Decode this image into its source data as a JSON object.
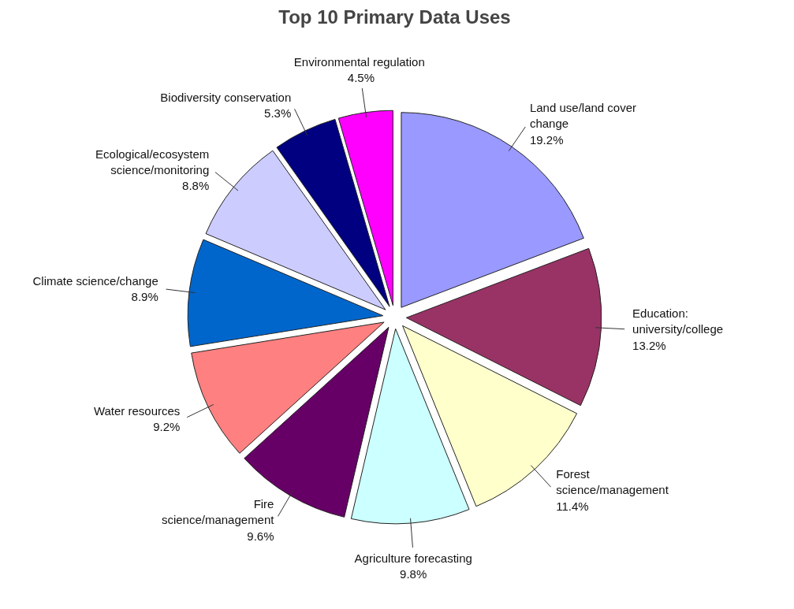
{
  "chart_data": {
    "type": "pie",
    "title": "Top 10 Primary Data Uses",
    "categories": [
      "Land use/land cover\nchange",
      "Education:\nuniversity/college",
      "Forest\nscience/management",
      "Agriculture forecasting",
      "Fire\nscience/management",
      "Water resources",
      "Climate science/change",
      "Ecological/ecosystem\nscience/monitoring",
      "Biodiversity conservation",
      "Environmental  regulation"
    ],
    "values": [
      19.2,
      13.2,
      11.4,
      9.8,
      9.6,
      9.2,
      8.9,
      8.8,
      5.3,
      4.5
    ],
    "value_labels": [
      "19.2%",
      "13.2%",
      "11.4%",
      "9.8%",
      "9.6%",
      "9.2%",
      "8.9%",
      "8.8%",
      "5.3%",
      "4.5%"
    ],
    "colors": [
      "#9999ff",
      "#993366",
      "#ffffcc",
      "#ccffff",
      "#660066",
      "#ff8080",
      "#0066cc",
      "#ccccff",
      "#000080",
      "#ff00ff"
    ]
  }
}
